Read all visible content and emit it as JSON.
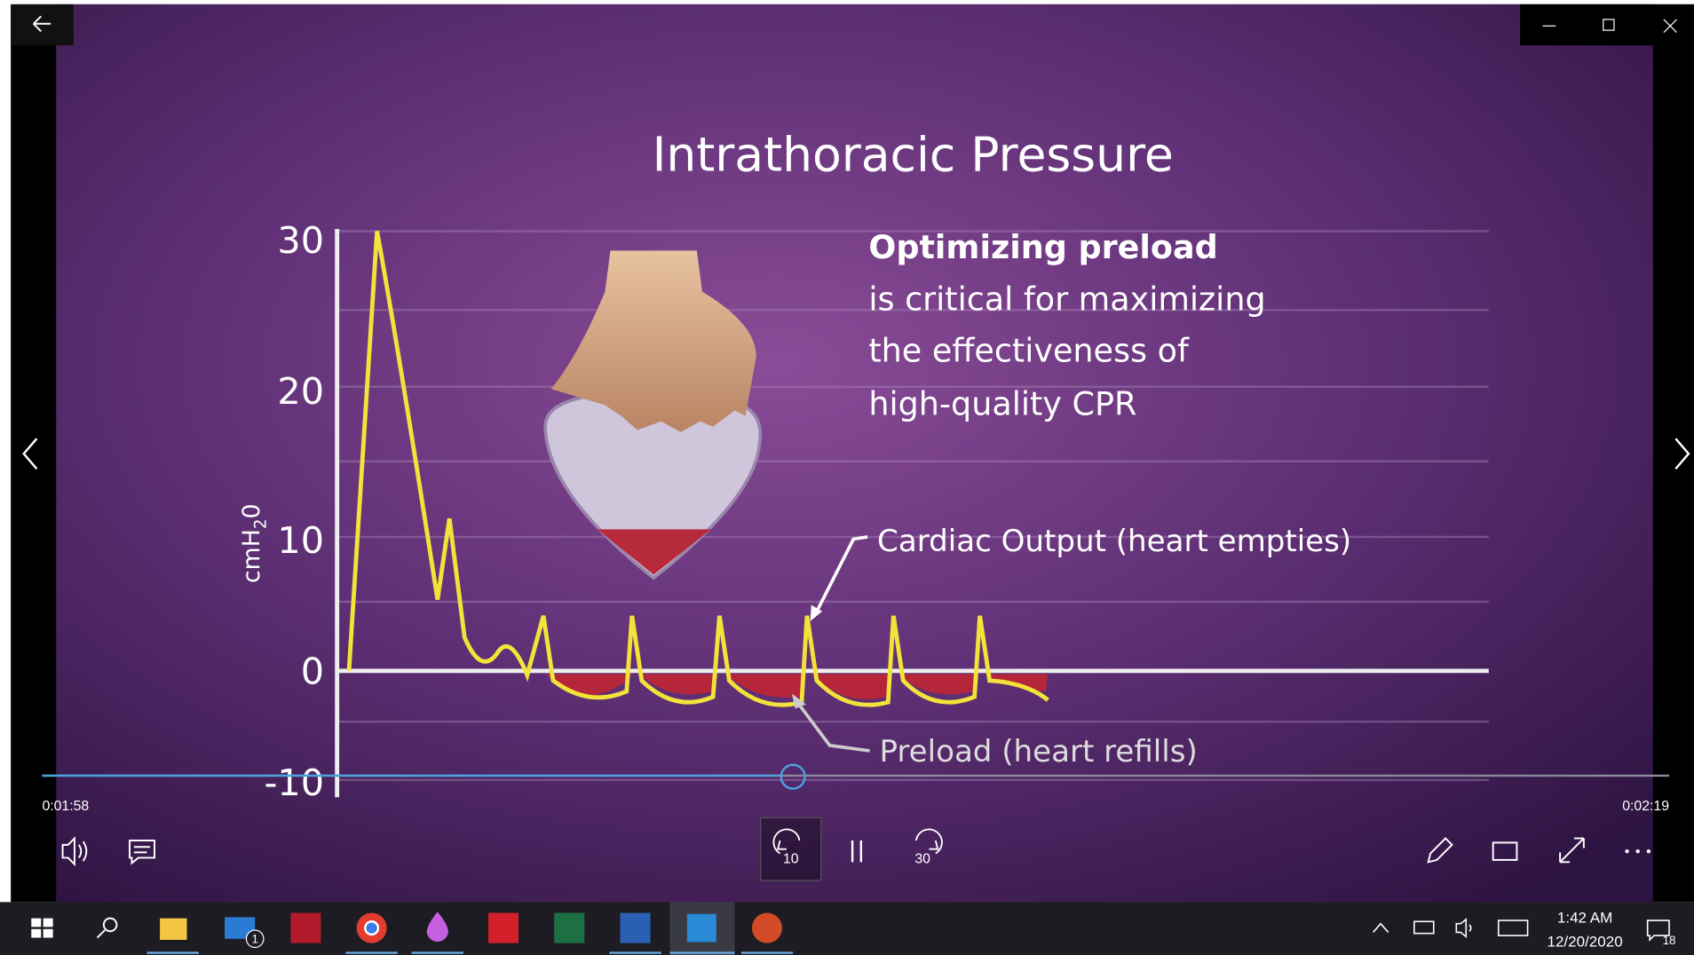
{
  "player": {
    "slide": {
      "title": "Intrathoracic Pressure",
      "y_axis_label": {
        "base": "cmH",
        "subscript": "2",
        "tail": "0"
      },
      "yticks": [
        "30",
        "20",
        "10",
        "0",
        "-10"
      ],
      "headline": "Optimizing preload",
      "body_lines": [
        "is critical for maximizing",
        "the effectiveness of",
        "high-quality CPR"
      ],
      "annotations": [
        "Cardiac Output (heart empties)",
        "Preload (heart refills)"
      ]
    },
    "elapsed": "0:01:58",
    "duration": "0:02:19",
    "skip_back": "10",
    "skip_forward": "30"
  },
  "taskbar": {
    "mail_badge": "1",
    "time": "1:42 AM",
    "date": "12/20/2020",
    "notification_count": "18"
  }
}
